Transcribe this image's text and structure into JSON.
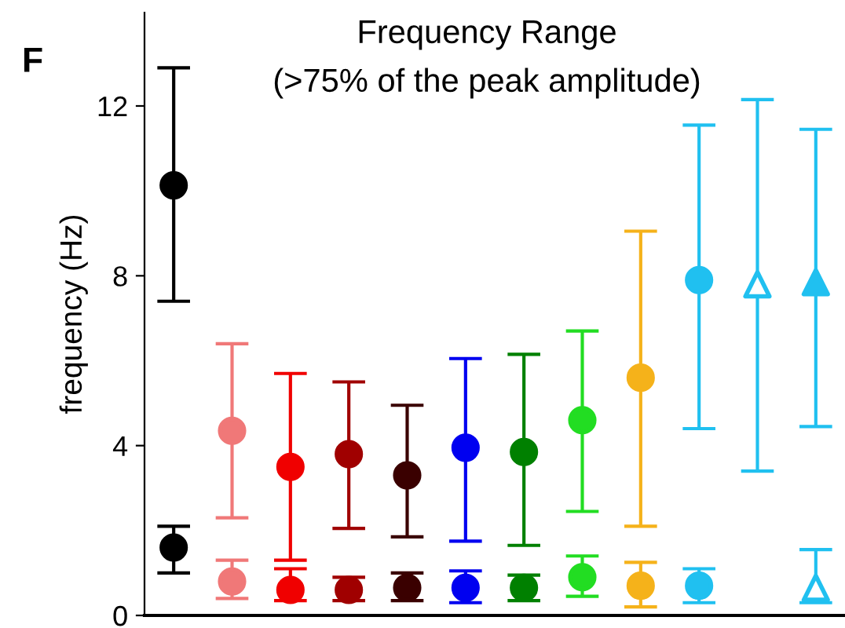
{
  "chart_data": {
    "type": "scatter",
    "title": "Frequency Range",
    "subtitle": "(>75% of the peak amplitude)",
    "ylabel": "frequency (Hz)",
    "annotations": [
      "F"
    ],
    "categories": [
      null,
      null,
      null,
      null,
      null,
      null,
      null,
      null,
      null,
      null,
      null,
      null
    ],
    "ylim": [
      0,
      14.2
    ],
    "yticks": [
      0,
      4,
      8,
      12
    ],
    "tick_labels": "y",
    "grid": false,
    "legend": false,
    "series": [
      {
        "marker": "circle",
        "colors": [
          "#000000",
          "#f07878",
          "#f00000",
          "#a00000",
          "#3a0000",
          "#0000f0",
          "#008000",
          "#22dd22",
          "#f5b21a",
          "#20c0f0",
          null,
          null
        ],
        "values": [
          10.13,
          4.35,
          3.5,
          3.8,
          3.3,
          3.95,
          3.85,
          4.6,
          5.6,
          7.9,
          null,
          null
        ],
        "errors": [
          [
            7.4,
            12.9
          ],
          [
            2.3,
            6.4
          ],
          [
            1.3,
            5.7
          ],
          [
            2.05,
            5.5
          ],
          [
            1.85,
            4.95
          ],
          [
            1.75,
            6.05
          ],
          [
            1.65,
            6.15
          ],
          [
            2.45,
            6.7
          ],
          [
            2.1,
            9.05
          ],
          [
            4.4,
            11.55
          ],
          null,
          null
        ]
      },
      {
        "marker": "circle",
        "colors": [
          "#000000",
          "#f07878",
          "#f00000",
          "#a00000",
          "#3a0000",
          "#0000f0",
          "#008000",
          "#22dd22",
          "#f5b21a",
          "#20c0f0",
          null,
          null
        ],
        "values": [
          1.6,
          0.8,
          0.6,
          0.6,
          0.65,
          0.65,
          0.65,
          0.9,
          0.7,
          0.7,
          null,
          null
        ],
        "errors": [
          [
            1.0,
            2.1
          ],
          [
            0.4,
            1.3
          ],
          [
            0.35,
            1.1
          ],
          [
            0.35,
            0.9
          ],
          [
            0.35,
            1.0
          ],
          [
            0.3,
            1.05
          ],
          [
            0.35,
            0.95
          ],
          [
            0.45,
            1.4
          ],
          [
            0.2,
            1.25
          ],
          [
            0.3,
            1.1
          ],
          null,
          null
        ]
      },
      {
        "marker": "triangle",
        "colors": [
          null,
          null,
          null,
          null,
          null,
          null,
          null,
          null,
          null,
          null,
          "#20c0f0",
          null
        ],
        "values": [
          null,
          null,
          null,
          null,
          null,
          null,
          null,
          null,
          null,
          null,
          7.8,
          0.65
        ],
        "errors": [
          null,
          null,
          null,
          null,
          null,
          null,
          null,
          null,
          null,
          null,
          [
            3.4,
            12.15
          ],
          [
            0.3,
            1.55
          ]
        ]
      },
      {
        "marker": "triangle",
        "colors": [
          null,
          null,
          null,
          null,
          null,
          null,
          null,
          null,
          null,
          null,
          null,
          "#20c0f0"
        ],
        "values": [
          null,
          null,
          null,
          null,
          null,
          null,
          null,
          null,
          null,
          null,
          null,
          7.85
        ],
        "errors": [
          null,
          null,
          null,
          null,
          null,
          null,
          null,
          null,
          null,
          null,
          null,
          [
            4.45,
            11.45
          ]
        ]
      }
    ]
  }
}
